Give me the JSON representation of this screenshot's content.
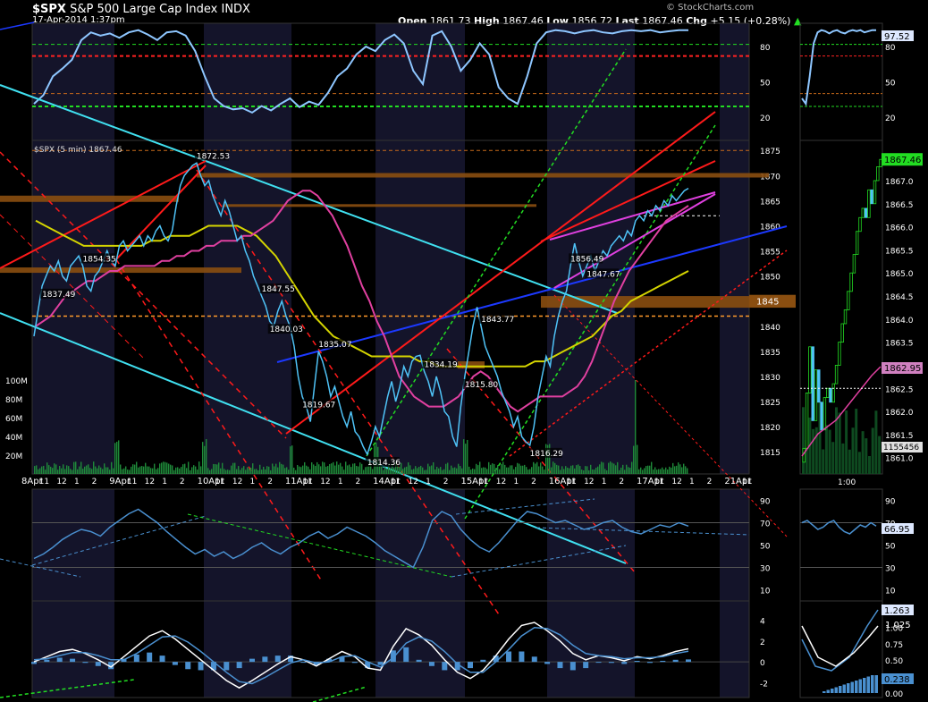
{
  "header": {
    "symbol": "$SPX",
    "name": "S&P 500 Large Cap Index",
    "exchange": "INDX",
    "datetime": "17-Apr-2014 1:37pm",
    "open_label": "Open",
    "open": "1861.73",
    "high_label": "High",
    "high": "1867.46",
    "low_label": "Low",
    "low": "1856.72",
    "last_label": "Last",
    "last": "1867.46",
    "chg_label": "Chg",
    "chg": "+5.15 (+0.28%)",
    "brand": "© StockCharts.com"
  },
  "colors": {
    "background": "#000000",
    "price": "#4fc3f7",
    "sma_fast": "#e040a0",
    "sma_slow": "#d4d400",
    "trend_red": "#ff1a1a",
    "trend_cyan": "#40e0f0",
    "trend_green": "#22dd22",
    "trend_blue": "#1c39ff",
    "resistance_band": "#8a4e10",
    "volume": "#1f8a3a",
    "macd_hist": "#4a90d0",
    "shaded_session": "#14142a"
  },
  "chart_data": [
    {
      "id": "rsi_top",
      "type": "line",
      "y_ticks": [
        "80",
        "50",
        "20"
      ],
      "ylim": [
        0,
        100
      ],
      "reference_lines": [
        82,
        72,
        40,
        29
      ],
      "last_value_label": "97.52",
      "values": [
        30,
        38,
        55,
        62,
        70,
        88,
        95,
        92,
        94,
        90,
        95,
        97,
        93,
        88,
        95,
        96,
        92,
        78,
        55,
        35,
        28,
        25,
        26,
        22,
        28,
        24,
        30,
        35,
        27,
        32,
        29,
        40,
        55,
        62,
        75,
        82,
        78,
        88,
        93,
        85,
        60,
        48,
        92,
        96,
        82,
        60,
        70,
        85,
        75,
        45,
        35,
        30,
        55,
        85,
        95,
        97,
        96,
        94,
        96,
        97,
        95,
        94,
        96,
        97,
        96,
        97,
        95,
        96,
        97,
        97
      ]
    },
    {
      "id": "price_main",
      "type": "line",
      "title": "$SPX (5 min) 1867.46",
      "y_ticks": [
        "1875",
        "1870",
        "1865",
        "1860",
        "1855",
        "1850",
        "1845",
        "1840",
        "1835",
        "1830",
        "1825",
        "1820",
        "1815"
      ],
      "ylim": [
        1812,
        1877
      ],
      "price_tag": "1845",
      "x_ticks": [
        "8Apr",
        "11",
        "12",
        "1",
        "2",
        "9Apr",
        "11",
        "12",
        "1",
        "2",
        "10Apr",
        "11",
        "12",
        "1",
        "2",
        "11Apr",
        "11",
        "12",
        "1",
        "2",
        "14Apr",
        "11",
        "12",
        "1",
        "2",
        "15Apr",
        "11",
        "12",
        "1",
        "2",
        "16Apr",
        "11",
        "12",
        "1",
        "2",
        "17Apr",
        "11",
        "12",
        "1",
        "2",
        "21Apr",
        "11"
      ],
      "volume_ticks": [
        "100M",
        "80M",
        "60M",
        "40M",
        "20M"
      ],
      "annotations": [
        {
          "label": "1837.49",
          "x": 2,
          "y": 1837.49
        },
        {
          "label": "1854.35",
          "x": 12,
          "y": 1854.35
        },
        {
          "label": "1872.53",
          "x": 40,
          "y": 1872.53
        },
        {
          "label": "1847.55",
          "x": 56,
          "y": 1847.55
        },
        {
          "label": "1840.03",
          "x": 58,
          "y": 1840.03
        },
        {
          "label": "1835.07",
          "x": 70,
          "y": 1835.07
        },
        {
          "label": "1819.67",
          "x": 66,
          "y": 1819.67
        },
        {
          "label": "1814.36",
          "x": 82,
          "y": 1814.36
        },
        {
          "label": "1834.19",
          "x": 96,
          "y": 1834.19
        },
        {
          "label": "1843.77",
          "x": 110,
          "y": 1843.77
        },
        {
          "label": "1815.80",
          "x": 106,
          "y": 1815.8
        },
        {
          "label": "1816.29",
          "x": 122,
          "y": 1816.29
        },
        {
          "label": "1856.49",
          "x": 132,
          "y": 1856.49
        },
        {
          "label": "1847.67",
          "x": 136,
          "y": 1847.67
        }
      ],
      "price": [
        1838,
        1843,
        1848,
        1850,
        1852,
        1851,
        1853,
        1850,
        1849,
        1852,
        1853,
        1854,
        1852,
        1848,
        1847,
        1850,
        1851,
        1853,
        1855,
        1853,
        1852,
        1856,
        1857,
        1855,
        1856,
        1857,
        1858,
        1856,
        1858,
        1857,
        1859,
        1860,
        1858,
        1857,
        1859,
        1864,
        1868,
        1870,
        1871,
        1872,
        1872.5,
        1870,
        1868,
        1869,
        1866,
        1864,
        1862,
        1865,
        1863,
        1860,
        1857,
        1858,
        1855,
        1853,
        1850,
        1848,
        1846,
        1844,
        1841,
        1840,
        1843,
        1845,
        1842,
        1840,
        1836,
        1830,
        1826,
        1824,
        1821,
        1828,
        1835,
        1833,
        1830,
        1826,
        1828,
        1825,
        1822,
        1820,
        1823,
        1819,
        1818,
        1816,
        1814.5,
        1817,
        1820,
        1818,
        1822,
        1826,
        1829,
        1825,
        1828,
        1832,
        1830,
        1833,
        1834,
        1834.2,
        1831,
        1829,
        1826,
        1830,
        1827,
        1823,
        1822,
        1818,
        1816,
        1824,
        1830,
        1835,
        1840,
        1843.8,
        1840,
        1836,
        1834,
        1832,
        1830,
        1827,
        1825,
        1823,
        1820,
        1822,
        1818,
        1817,
        1816.3,
        1820,
        1826,
        1830,
        1834,
        1832,
        1838,
        1842,
        1845,
        1847,
        1852,
        1856.5,
        1853,
        1850,
        1852,
        1854,
        1851,
        1853,
        1855,
        1854,
        1856,
        1857,
        1858,
        1857,
        1859,
        1858,
        1861,
        1862,
        1861,
        1863,
        1862,
        1864,
        1863,
        1865,
        1864,
        1866,
        1865,
        1866,
        1867,
        1867.46
      ],
      "sma_fast": [
        1840,
        1841,
        1842,
        1844,
        1846,
        1847,
        1848,
        1849,
        1849,
        1850,
        1851,
        1851,
        1852,
        1852,
        1852,
        1852,
        1852,
        1853,
        1853,
        1854,
        1854,
        1855,
        1855,
        1856,
        1856,
        1857,
        1857,
        1857,
        1858,
        1858,
        1859,
        1860,
        1861,
        1863,
        1865,
        1866,
        1867,
        1867,
        1866,
        1864,
        1862,
        1859,
        1856,
        1852,
        1848,
        1845,
        1841,
        1838,
        1834,
        1830,
        1828,
        1826,
        1825,
        1824,
        1824,
        1824,
        1825,
        1826,
        1828,
        1830,
        1831,
        1830,
        1828,
        1826,
        1824,
        1823,
        1824,
        1825,
        1826,
        1826,
        1826,
        1826,
        1827,
        1828,
        1830,
        1833,
        1837,
        1841,
        1845,
        1848,
        1851,
        1853,
        1855,
        1857,
        1859,
        1861,
        1862,
        1863,
        1864
      ],
      "sma_slow": [
        1861,
        1860,
        1859,
        1858,
        1857,
        1856,
        1856,
        1856,
        1856,
        1856,
        1856,
        1856,
        1857,
        1857,
        1858,
        1858,
        1858,
        1859,
        1860,
        1860,
        1860,
        1860,
        1859,
        1858,
        1856,
        1854,
        1851,
        1848,
        1845,
        1842,
        1840,
        1838,
        1837,
        1836,
        1835,
        1834,
        1834,
        1834,
        1834,
        1834,
        1833,
        1833,
        1832,
        1832,
        1832,
        1832,
        1832,
        1832,
        1832,
        1832,
        1832,
        1832,
        1833,
        1833,
        1834,
        1835,
        1836,
        1837,
        1838,
        1840,
        1842,
        1843,
        1845,
        1846,
        1847,
        1848,
        1849,
        1850,
        1851
      ]
    },
    {
      "id": "side_price",
      "type": "bar",
      "title": "1:00",
      "y_ticks": [
        "1867.0",
        "1866.5",
        "1866.0",
        "1865.5",
        "1865.0",
        "1864.5",
        "1864.0",
        "1863.5",
        "1863.0",
        "1862.5",
        "1862.0",
        "1861.5",
        "1861.0"
      ],
      "ylim": [
        1860.8,
        1867.6
      ],
      "last_tags": [
        "1867.46",
        "1862.95",
        "1155456"
      ],
      "closes": [
        1861.2,
        1862.4,
        1863.4,
        1861.8,
        1862.9,
        1862.2,
        1861.6,
        1862.3,
        1862.5,
        1862.2,
        1862.6,
        1863.0,
        1863.5,
        1863.9,
        1864.2,
        1864.6,
        1865.0,
        1865.4,
        1865.9,
        1866.2,
        1866.4,
        1866.2,
        1866.8,
        1866.5,
        1867.0,
        1867.3,
        1867.46
      ]
    },
    {
      "id": "rsi_mid",
      "type": "line",
      "y_ticks": [
        "90",
        "70",
        "50",
        "30",
        "10"
      ],
      "ylim": [
        0,
        100
      ],
      "last_value_label": "66.95",
      "values": [
        38,
        42,
        48,
        55,
        60,
        64,
        62,
        58,
        66,
        72,
        78,
        82,
        76,
        70,
        62,
        55,
        48,
        42,
        46,
        40,
        44,
        38,
        42,
        48,
        52,
        46,
        42,
        48,
        52,
        58,
        62,
        56,
        60,
        66,
        62,
        58,
        52,
        45,
        40,
        35,
        30,
        48,
        72,
        80,
        76,
        64,
        55,
        48,
        44,
        52,
        62,
        72,
        80,
        78,
        74,
        70,
        72,
        68,
        64,
        66,
        70,
        72,
        66,
        62,
        60,
        64,
        68,
        66,
        70,
        67
      ]
    },
    {
      "id": "macd",
      "type": "line",
      "y_ticks": [
        "4",
        "2",
        "0",
        "-2"
      ],
      "ylim": [
        -3,
        5
      ],
      "last_value_labels": [
        "1.263",
        "1.025",
        "0.238"
      ],
      "macd": [
        0,
        0.5,
        1,
        1.2,
        0.8,
        0.2,
        -0.5,
        0.5,
        1.5,
        2.5,
        3,
        2.2,
        1.2,
        0.2,
        -0.8,
        -1.8,
        -2.5,
        -1.8,
        -1,
        -0.2,
        0.5,
        0.2,
        -0.4,
        0.3,
        1,
        0.5,
        -0.6,
        -0.8,
        1.5,
        3.2,
        2.6,
        1.6,
        0.2,
        -1,
        -1.6,
        -0.8,
        0.6,
        2.2,
        3.5,
        3.8,
        3,
        2,
        0.8,
        0.2,
        0.6,
        0.4,
        0.1,
        0.5,
        0.3,
        0.6,
        1.0,
        1.26
      ],
      "signal": [
        0.2,
        0.3,
        0.6,
        0.9,
        0.9,
        0.6,
        0.2,
        0.2,
        0.8,
        1.6,
        2.4,
        2.5,
        1.9,
        1.0,
        0.0,
        -1.0,
        -1.9,
        -2.1,
        -1.5,
        -0.8,
        -0.1,
        0.2,
        -0.1,
        0.0,
        0.5,
        0.6,
        0.0,
        -0.5,
        0.4,
        1.8,
        2.4,
        2.0,
        1.0,
        -0.2,
        -1.0,
        -1.0,
        0.0,
        1.2,
        2.5,
        3.3,
        3.2,
        2.6,
        1.6,
        0.8,
        0.6,
        0.5,
        0.3,
        0.4,
        0.4,
        0.5,
        0.8,
        1.025
      ]
    }
  ]
}
